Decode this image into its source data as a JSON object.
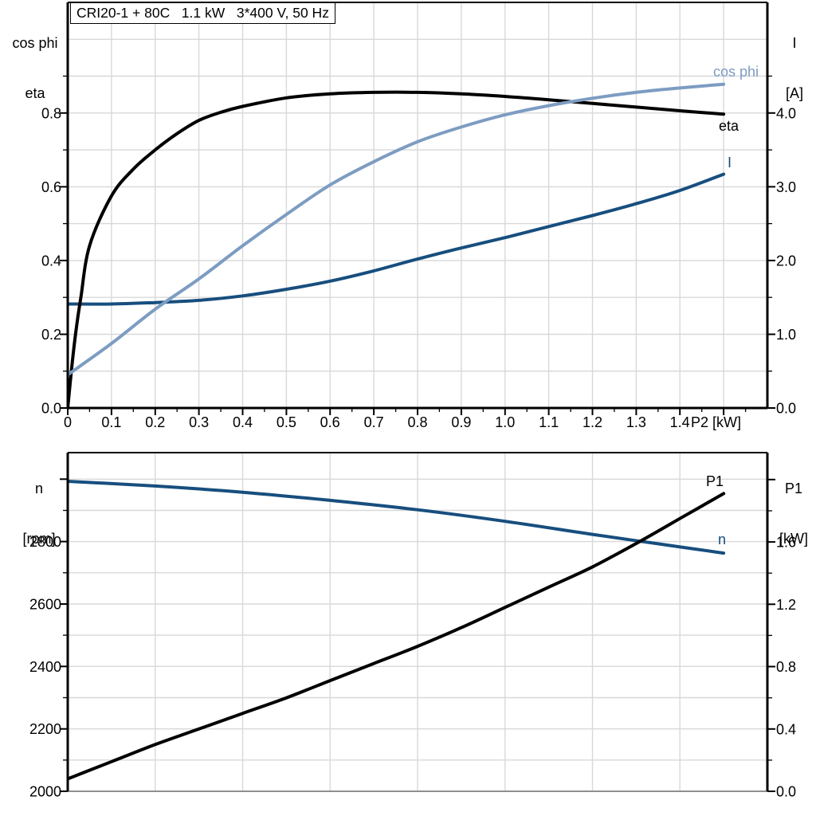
{
  "colors": {
    "black": "#000000",
    "light_blue": "#7d9cc2",
    "dark_blue": "#174e7e",
    "grid": "#d8d8d8",
    "axis": "#000000",
    "baseline_gray": "#8f8f8f",
    "background": "#ffffff"
  },
  "chart_data": [
    {
      "type": "line",
      "title": "CRI20-1 + 80C   1.1 kW   3*400 V, 50 Hz",
      "x_axis": {
        "label": "P2 [kW]",
        "range": [
          0,
          1.6
        ],
        "tick_values": [
          0,
          0.1,
          0.2,
          0.3,
          0.4,
          0.5,
          0.6,
          0.7,
          0.8,
          0.9,
          1.0,
          1.1,
          1.2,
          1.3,
          1.4,
          1.5
        ],
        "tick_labels": [
          "0",
          "0.1",
          "0.2",
          "0.3",
          "0.4",
          "0.5",
          "0.6",
          "0.7",
          "0.8",
          "0.9",
          "1.0",
          "1.1",
          "1.2",
          "1.3",
          "1.4",
          ""
        ],
        "minor_ticks": [
          0.05,
          0.15,
          0.25,
          0.35,
          0.45,
          0.55,
          0.65,
          0.75,
          0.85,
          0.95,
          1.05,
          1.15,
          1.25,
          1.35,
          1.45,
          1.55
        ],
        "grid_values": [
          0.1,
          0.2,
          0.3,
          0.4,
          0.5,
          0.6,
          0.7,
          0.8,
          0.9,
          1.0,
          1.1,
          1.2,
          1.3,
          1.4,
          1.5
        ]
      },
      "left_axis": {
        "title_lines": [
          "cos phi",
          "eta"
        ],
        "range": [
          0,
          1.1
        ],
        "tick_values": [
          0,
          0.2,
          0.4,
          0.6,
          0.8
        ],
        "tick_labels": [
          "0.0",
          "0.2",
          "0.4",
          "0.6",
          "0.8"
        ],
        "minor_ticks": [
          0.1,
          0.3,
          0.5,
          0.7,
          0.9
        ],
        "grid_values": [
          0.1,
          0.2,
          0.3,
          0.4,
          0.5,
          0.6,
          0.7,
          0.8,
          0.9,
          1.0
        ]
      },
      "right_axis": {
        "title_lines": [
          "I",
          "[A]"
        ],
        "range": [
          0,
          5.5
        ],
        "tick_values": [
          0,
          1,
          2,
          3,
          4
        ],
        "tick_labels": [
          "0.0",
          "1.0",
          "2.0",
          "3.0",
          "4.0"
        ],
        "minor_ticks": [
          0.5,
          1.5,
          2.5,
          3.5,
          4.5
        ]
      },
      "series": [
        {
          "id": "current",
          "name": "I",
          "axis": "right",
          "color": "dark_blue",
          "points": [
            [
              0,
              1.41
            ],
            [
              0.1,
              1.41
            ],
            [
              0.2,
              1.43
            ],
            [
              0.3,
              1.46
            ],
            [
              0.4,
              1.52
            ],
            [
              0.5,
              1.61
            ],
            [
              0.6,
              1.72
            ],
            [
              0.7,
              1.86
            ],
            [
              0.8,
              2.02
            ],
            [
              0.9,
              2.17
            ],
            [
              1.0,
              2.31
            ],
            [
              1.1,
              2.46
            ],
            [
              1.2,
              2.61
            ],
            [
              1.3,
              2.77
            ],
            [
              1.4,
              2.95
            ],
            [
              1.5,
              3.17
            ]
          ]
        },
        {
          "id": "eta",
          "name": "eta",
          "axis": "left",
          "color": "black",
          "points": [
            [
              0,
              0
            ],
            [
              0.01,
              0.12
            ],
            [
              0.02,
              0.22
            ],
            [
              0.03,
              0.3
            ],
            [
              0.05,
              0.44
            ],
            [
              0.1,
              0.575
            ],
            [
              0.15,
              0.648
            ],
            [
              0.2,
              0.7
            ],
            [
              0.25,
              0.744
            ],
            [
              0.3,
              0.78
            ],
            [
              0.35,
              0.802
            ],
            [
              0.4,
              0.818
            ],
            [
              0.5,
              0.841
            ],
            [
              0.6,
              0.852
            ],
            [
              0.7,
              0.856
            ],
            [
              0.8,
              0.856
            ],
            [
              0.9,
              0.852
            ],
            [
              1.0,
              0.845
            ],
            [
              1.1,
              0.836
            ],
            [
              1.2,
              0.826
            ],
            [
              1.3,
              0.816
            ],
            [
              1.4,
              0.806
            ],
            [
              1.5,
              0.797
            ]
          ]
        },
        {
          "id": "cos_phi",
          "name": "cos phi",
          "axis": "left",
          "color": "light_blue",
          "points": [
            [
              0,
              0.09
            ],
            [
              0.1,
              0.175
            ],
            [
              0.2,
              0.268
            ],
            [
              0.3,
              0.35
            ],
            [
              0.4,
              0.44
            ],
            [
              0.5,
              0.525
            ],
            [
              0.6,
              0.605
            ],
            [
              0.7,
              0.668
            ],
            [
              0.8,
              0.722
            ],
            [
              0.9,
              0.762
            ],
            [
              1.0,
              0.795
            ],
            [
              1.1,
              0.82
            ],
            [
              1.2,
              0.84
            ],
            [
              1.3,
              0.856
            ],
            [
              1.4,
              0.868
            ],
            [
              1.5,
              0.878
            ]
          ]
        }
      ]
    },
    {
      "type": "line",
      "title": "",
      "x_axis": {
        "label": "",
        "range": [
          0,
          1.6
        ],
        "tick_values": [],
        "tick_labels": [],
        "minor_ticks": [],
        "grid_values": [
          0.2,
          0.4,
          0.6,
          0.8,
          1.0,
          1.2,
          1.4
        ]
      },
      "left_axis": {
        "title_lines": [
          "n",
          "[rpm]"
        ],
        "range": [
          2000,
          3085
        ],
        "tick_values": [
          2000,
          2200,
          2400,
          2600,
          2800,
          3000
        ],
        "tick_labels": [
          "2000",
          "2200",
          "2400",
          "2600",
          "2800",
          ""
        ],
        "minor_ticks": [
          2100,
          2300,
          2500,
          2700,
          2900
        ],
        "grid_values": [
          2100,
          2200,
          2300,
          2400,
          2500,
          2600,
          2700,
          2800,
          2900,
          3000
        ]
      },
      "right_axis": {
        "title_lines": [
          "P1",
          "[kW]"
        ],
        "range": [
          0,
          2.173
        ],
        "tick_values": [
          0,
          0.4,
          0.8,
          1.2,
          1.6,
          2.0
        ],
        "tick_labels": [
          "0.0",
          "0.4",
          "0.8",
          "1.2",
          "1.6",
          ""
        ],
        "minor_ticks": [
          0.2,
          0.6,
          1.0,
          1.4,
          1.8
        ]
      },
      "series": [
        {
          "id": "speed",
          "name": "n",
          "axis": "left",
          "color": "dark_blue",
          "points": [
            [
              0,
              2993
            ],
            [
              0.2,
              2978
            ],
            [
              0.4,
              2958
            ],
            [
              0.6,
              2932
            ],
            [
              0.8,
              2902
            ],
            [
              1.0,
              2865
            ],
            [
              1.2,
              2823
            ],
            [
              1.35,
              2793
            ],
            [
              1.5,
              2763
            ]
          ]
        },
        {
          "id": "input_power",
          "name": "P1",
          "axis": "right",
          "color": "black",
          "points": [
            [
              0,
              0.08
            ],
            [
              0.1,
              0.19
            ],
            [
              0.2,
              0.3
            ],
            [
              0.3,
              0.4
            ],
            [
              0.4,
              0.5
            ],
            [
              0.5,
              0.6
            ],
            [
              0.6,
              0.71
            ],
            [
              0.7,
              0.82
            ],
            [
              0.8,
              0.93
            ],
            [
              0.9,
              1.05
            ],
            [
              1.0,
              1.18
            ],
            [
              1.1,
              1.31
            ],
            [
              1.2,
              1.44
            ],
            [
              1.3,
              1.59
            ],
            [
              1.4,
              1.75
            ],
            [
              1.5,
              1.91
            ]
          ]
        }
      ]
    }
  ]
}
